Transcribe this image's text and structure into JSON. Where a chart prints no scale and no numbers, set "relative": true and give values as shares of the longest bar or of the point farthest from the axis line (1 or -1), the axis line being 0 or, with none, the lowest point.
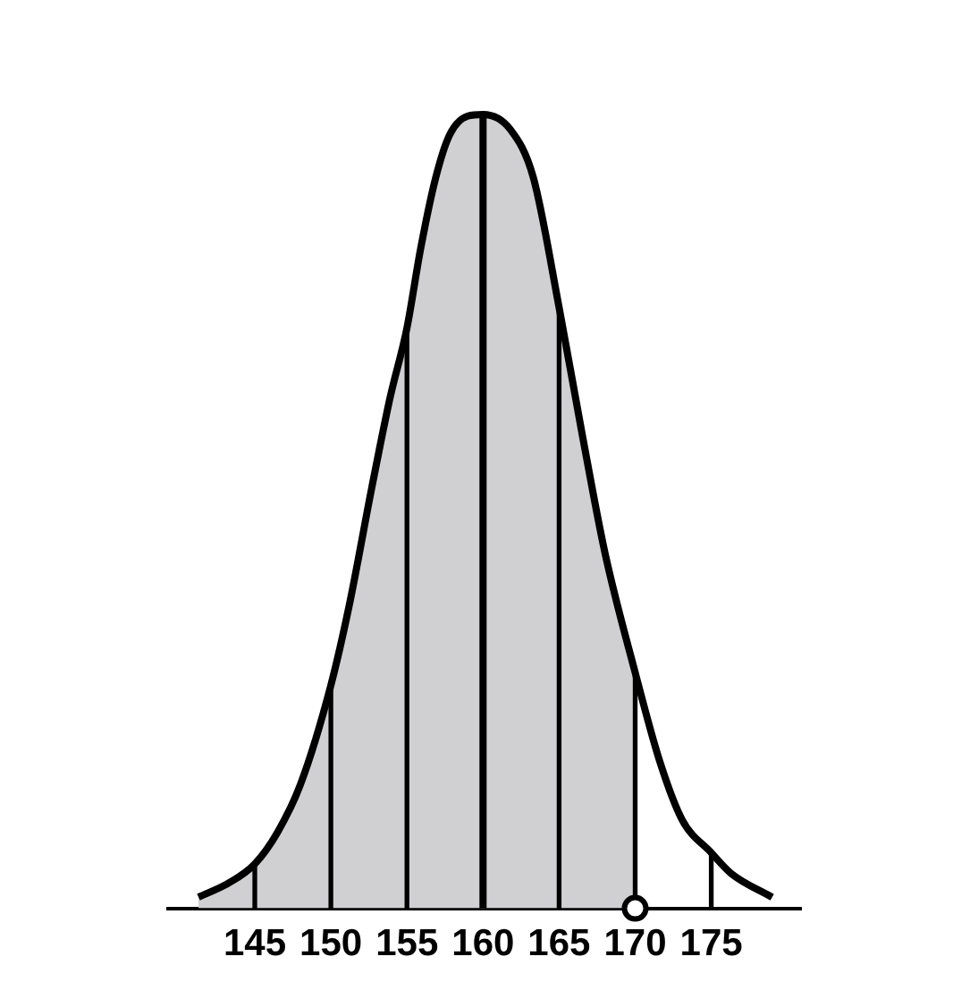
{
  "chart_data": {
    "type": "area",
    "relative": true,
    "xlim": [
      139.3,
      180.9
    ],
    "xticks": [
      145,
      150,
      155,
      160,
      165,
      170,
      175
    ],
    "grid": false,
    "legend": false,
    "series": [
      {
        "color": "#d0cfd1",
        "x": [
          141.3,
          143.3,
          145,
          146.5,
          148,
          150,
          151.2,
          152.7,
          153.9,
          155,
          155.9,
          156.9,
          157.8,
          159,
          160,
          161.8,
          163.3,
          165,
          166.5,
          168,
          170
        ],
        "values": [
          0.014,
          0.032,
          0.056,
          0.096,
          0.156,
          0.281,
          0.381,
          0.531,
          0.644,
          0.731,
          0.831,
          0.921,
          0.974,
          0.998,
          1,
          0.981,
          0.921,
          0.757,
          0.599,
          0.449,
          0.297
        ]
      },
      {
        "type": "bar",
        "color": "#000000",
        "x": [
          145,
          150,
          155,
          165,
          170,
          175
        ],
        "values": [
          0.056,
          0.281,
          0.731,
          0.757,
          0.297,
          0.07
        ]
      },
      {
        "type": "line",
        "color": "#000000",
        "x": [
          141.3,
          143.3,
          145,
          146.5,
          148,
          150,
          151.2,
          152.7,
          153.9,
          155,
          155.9,
          156.9,
          157.8,
          159,
          160,
          161.8,
          163.3,
          165,
          166.5,
          168,
          170,
          171.6,
          173.1,
          175,
          176.3,
          179
        ],
        "values": [
          0.014,
          0.032,
          0.056,
          0.096,
          0.156,
          0.281,
          0.381,
          0.531,
          0.644,
          0.731,
          0.831,
          0.921,
          0.974,
          0.998,
          1,
          0.981,
          0.921,
          0.757,
          0.599,
          0.449,
          0.297,
          0.186,
          0.111,
          0.07,
          0.044,
          0.014
        ]
      },
      {
        "type": "line",
        "color": "#000000",
        "x": [
          160,
          160
        ],
        "values": [
          0,
          1
        ]
      },
      {
        "type": "scatter",
        "color": "#000000",
        "marker": "circle",
        "x": [
          170
        ],
        "values": [
          0
        ]
      }
    ]
  }
}
